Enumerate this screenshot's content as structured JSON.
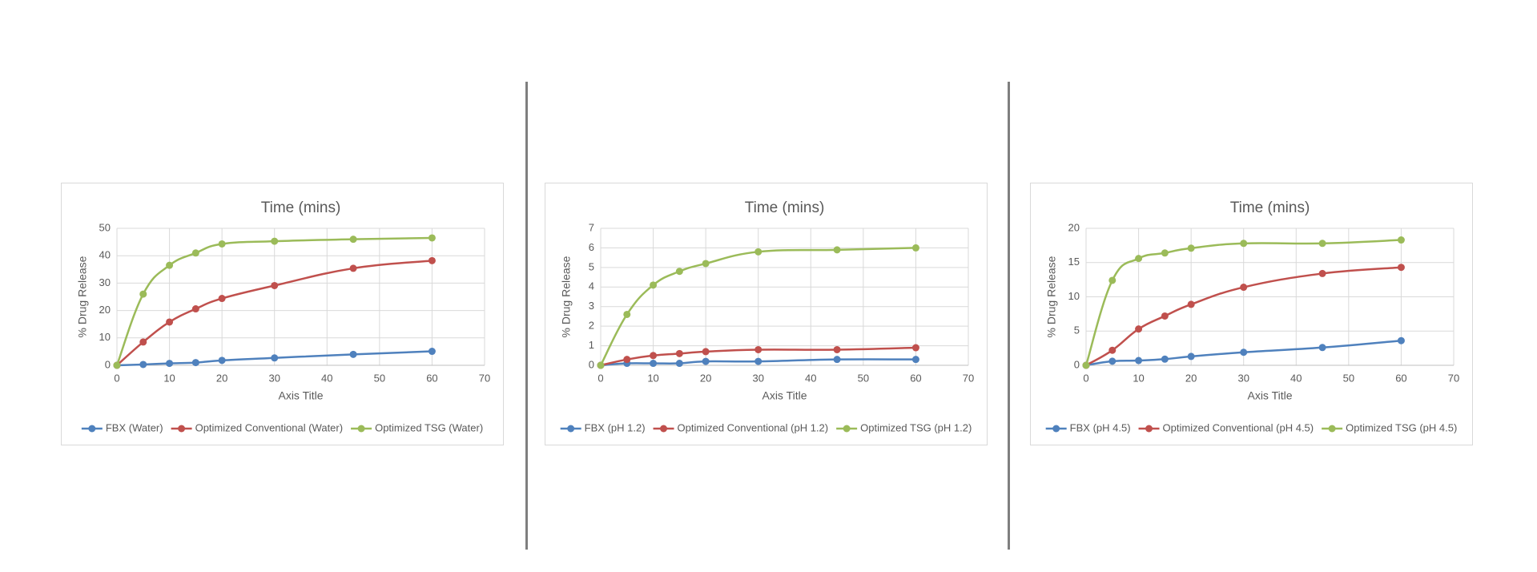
{
  "chart_data": [
    {
      "type": "line",
      "title": "Time (mins)",
      "x_label": "Axis Title",
      "y_label": "% Drug Release",
      "x": [
        0,
        5,
        10,
        15,
        20,
        30,
        45,
        60
      ],
      "series": [
        {
          "name": "FBX (Water)",
          "color": "#4f81bd",
          "values": [
            0,
            0.3,
            0.7,
            1,
            1.8,
            2.7,
            4,
            5.1
          ]
        },
        {
          "name": "Optimized Conventional (Water)",
          "color": "#c0504d",
          "values": [
            0,
            8.5,
            15.8,
            20.6,
            24.4,
            29.1,
            35.4,
            38.2
          ]
        },
        {
          "name": "Optimized TSG (Water)",
          "color": "#9bbb59",
          "values": [
            0,
            26,
            36.5,
            41,
            44.3,
            45.3,
            46,
            46.5
          ]
        }
      ],
      "xlim": [
        0,
        70
      ],
      "xticks": [
        0,
        10,
        20,
        30,
        40,
        50,
        60,
        70
      ],
      "ylim": [
        0,
        50
      ],
      "yticks": [
        0,
        10,
        20,
        30,
        40,
        50
      ],
      "grid": true,
      "legend": "bottom"
    },
    {
      "type": "line",
      "title": "Time (mins)",
      "x_label": "Axis Title",
      "y_label": "% Drug Release",
      "x": [
        0,
        5,
        10,
        15,
        20,
        30,
        45,
        60
      ],
      "series": [
        {
          "name": "FBX (pH 1.2)",
          "color": "#4f81bd",
          "values": [
            0,
            0.1,
            0.1,
            0.1,
            0.2,
            0.2,
            0.3,
            0.3
          ]
        },
        {
          "name": "Optimized Conventional (pH 1.2)",
          "color": "#c0504d",
          "values": [
            0,
            0.3,
            0.5,
            0.6,
            0.7,
            0.8,
            0.8,
            0.9
          ]
        },
        {
          "name": "Optimized TSG (pH 1.2)",
          "color": "#9bbb59",
          "values": [
            0,
            2.6,
            4.1,
            4.8,
            5.2,
            5.8,
            5.9,
            6
          ]
        }
      ],
      "xlim": [
        0,
        70
      ],
      "xticks": [
        0,
        10,
        20,
        30,
        40,
        50,
        60,
        70
      ],
      "ylim": [
        0,
        7
      ],
      "yticks": [
        0,
        1,
        2,
        3,
        4,
        5,
        6,
        7
      ],
      "grid": true,
      "legend": "bottom"
    },
    {
      "type": "line",
      "title": "Time (mins)",
      "x_label": "Axis Title",
      "y_label": "% Drug Release",
      "x": [
        0,
        5,
        10,
        15,
        20,
        30,
        45,
        60
      ],
      "series": [
        {
          "name": "FBX (pH 4.5)",
          "color": "#4f81bd",
          "values": [
            0,
            0.6,
            0.7,
            0.9,
            1.3,
            1.9,
            2.6,
            3.6
          ]
        },
        {
          "name": "Optimized Conventional (pH 4.5)",
          "color": "#c0504d",
          "values": [
            0,
            2.2,
            5.3,
            7.2,
            8.9,
            11.4,
            13.4,
            14.3
          ]
        },
        {
          "name": "Optimized TSG (pH 4.5)",
          "color": "#9bbb59",
          "values": [
            0,
            12.4,
            15.6,
            16.4,
            17.1,
            17.8,
            17.8,
            18.3
          ]
        }
      ],
      "xlim": [
        0,
        70
      ],
      "xticks": [
        0,
        10,
        20,
        30,
        40,
        50,
        60,
        70
      ],
      "ylim": [
        0,
        20
      ],
      "yticks": [
        0,
        5,
        10,
        15,
        20
      ],
      "grid": true,
      "legend": "bottom"
    }
  ]
}
